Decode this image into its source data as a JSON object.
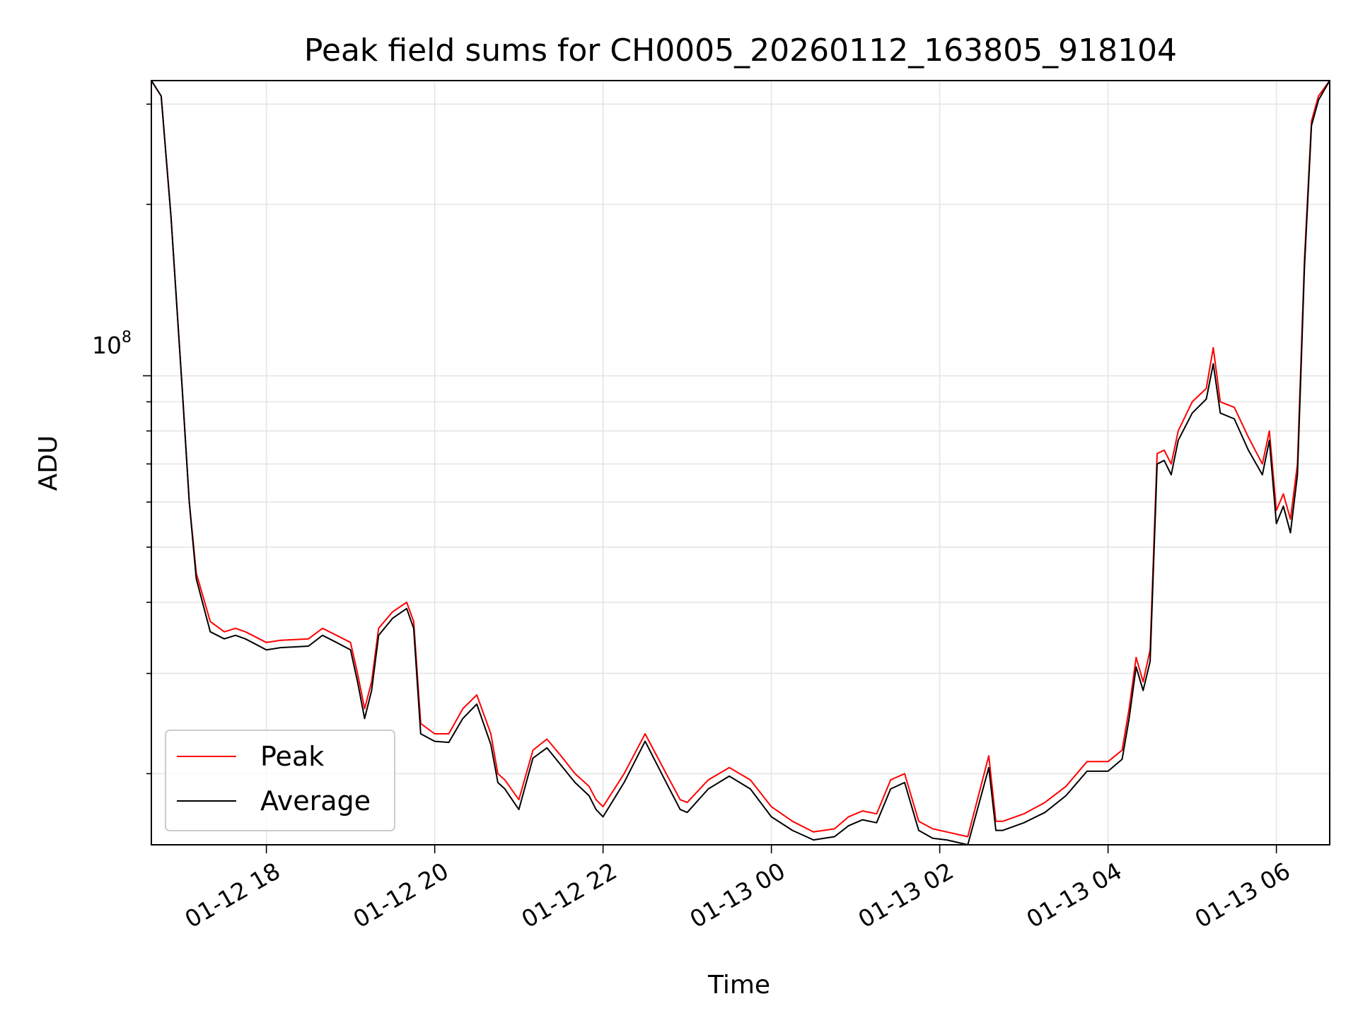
{
  "chart_data": {
    "type": "line",
    "title": "Peak field sums for CH0005_20260112_163805_918104",
    "xlabel": "Time",
    "ylabel": "ADU",
    "y_scale": "log",
    "grid": true,
    "legend_position": "lower-left",
    "xlim": [
      "2026-01-12 16:38",
      "2026-01-13 06:38"
    ],
    "ylim": [
      15000000,
      330000000
    ],
    "x_tick_labels": [
      "01-12 18",
      "01-12 20",
      "01-12 22",
      "01-13 00",
      "01-13 02",
      "01-13 04",
      "01-13 06"
    ],
    "x_ticks": [
      "2026-01-12 18:00",
      "2026-01-12 20:00",
      "2026-01-12 22:00",
      "2026-01-13 00:00",
      "2026-01-13 02:00",
      "2026-01-13 04:00",
      "2026-01-13 06:00"
    ],
    "y_tick_label": "10^8",
    "y_tick_label_base": "10",
    "y_tick_label_exp": "8",
    "y_major_ticks": [
      100000000
    ],
    "y_minor_ticks": [
      20000000,
      30000000,
      40000000,
      50000000,
      60000000,
      70000000,
      80000000,
      90000000,
      200000000,
      300000000
    ],
    "legend": [
      {
        "label": "Peak",
        "color": "#ff0000"
      },
      {
        "label": "Average",
        "color": "#000000"
      }
    ],
    "series": [
      {
        "name": "Peak",
        "color": "#ff0000",
        "x": [
          "2026-01-12 16:38",
          "2026-01-12 16:45",
          "2026-01-12 16:52",
          "2026-01-12 17:00",
          "2026-01-12 17:05",
          "2026-01-12 17:10",
          "2026-01-12 17:20",
          "2026-01-12 17:30",
          "2026-01-12 17:38",
          "2026-01-12 17:45",
          "2026-01-12 17:50",
          "2026-01-12 18:00",
          "2026-01-12 18:10",
          "2026-01-12 18:30",
          "2026-01-12 18:40",
          "2026-01-12 18:50",
          "2026-01-12 19:00",
          "2026-01-12 19:05",
          "2026-01-12 19:10",
          "2026-01-12 19:15",
          "2026-01-12 19:20",
          "2026-01-12 19:30",
          "2026-01-12 19:40",
          "2026-01-12 19:45",
          "2026-01-12 19:50",
          "2026-01-12 20:00",
          "2026-01-12 20:10",
          "2026-01-12 20:20",
          "2026-01-12 20:30",
          "2026-01-12 20:40",
          "2026-01-12 20:45",
          "2026-01-12 20:50",
          "2026-01-12 21:00",
          "2026-01-12 21:10",
          "2026-01-12 21:20",
          "2026-01-12 21:30",
          "2026-01-12 21:40",
          "2026-01-12 21:50",
          "2026-01-12 21:55",
          "2026-01-12 22:00",
          "2026-01-12 22:15",
          "2026-01-12 22:30",
          "2026-01-12 22:45",
          "2026-01-12 22:55",
          "2026-01-12 23:00",
          "2026-01-12 23:15",
          "2026-01-12 23:30",
          "2026-01-12 23:45",
          "2026-01-13 00:00",
          "2026-01-13 00:15",
          "2026-01-13 00:30",
          "2026-01-13 00:45",
          "2026-01-13 00:55",
          "2026-01-13 01:05",
          "2026-01-13 01:15",
          "2026-01-13 01:25",
          "2026-01-13 01:35",
          "2026-01-13 01:45",
          "2026-01-13 01:55",
          "2026-01-13 02:05",
          "2026-01-13 02:20",
          "2026-01-13 02:35",
          "2026-01-13 02:40",
          "2026-01-13 02:45",
          "2026-01-13 03:00",
          "2026-01-13 03:15",
          "2026-01-13 03:30",
          "2026-01-13 03:45",
          "2026-01-13 04:00",
          "2026-01-13 04:10",
          "2026-01-13 04:15",
          "2026-01-13 04:20",
          "2026-01-13 04:25",
          "2026-01-13 04:30",
          "2026-01-13 04:35",
          "2026-01-13 04:40",
          "2026-01-13 04:45",
          "2026-01-13 04:50",
          "2026-01-13 05:00",
          "2026-01-13 05:10",
          "2026-01-13 05:15",
          "2026-01-13 05:20",
          "2026-01-13 05:30",
          "2026-01-13 05:40",
          "2026-01-13 05:50",
          "2026-01-13 05:55",
          "2026-01-13 06:00",
          "2026-01-13 06:05",
          "2026-01-13 06:10",
          "2026-01-13 06:15",
          "2026-01-13 06:20",
          "2026-01-13 06:25",
          "2026-01-13 06:30",
          "2026-01-13 06:38"
        ],
        "values": [
          330000000,
          310000000,
          190000000,
          95000000,
          60000000,
          45000000,
          37000000,
          35500000,
          36000000,
          35500000,
          35000000,
          34000000,
          34300000,
          34500000,
          36000000,
          35000000,
          34000000,
          30000000,
          26000000,
          29000000,
          36000000,
          38500000,
          40000000,
          37000000,
          24500000,
          23500000,
          23500000,
          26000000,
          27500000,
          23500000,
          20000000,
          19500000,
          18000000,
          22000000,
          23000000,
          21500000,
          20000000,
          19000000,
          18000000,
          17500000,
          20000000,
          23500000,
          20000000,
          18000000,
          17800000,
          19500000,
          20500000,
          19500000,
          17500000,
          16500000,
          15800000,
          16000000,
          16800000,
          17200000,
          17000000,
          19500000,
          20000000,
          16500000,
          16000000,
          15800000,
          15500000,
          21500000,
          16500000,
          16500000,
          17000000,
          17800000,
          19000000,
          21000000,
          21000000,
          22000000,
          26000000,
          32000000,
          29000000,
          33000000,
          73000000,
          74000000,
          70000000,
          80000000,
          90000000,
          95000000,
          112000000,
          90000000,
          88000000,
          78000000,
          70000000,
          80000000,
          58000000,
          62000000,
          56000000,
          70000000,
          160000000,
          280000000,
          310000000,
          330000000
        ]
      },
      {
        "name": "Average",
        "color": "#000000",
        "x": [
          "2026-01-12 16:38",
          "2026-01-12 16:45",
          "2026-01-12 16:52",
          "2026-01-12 17:00",
          "2026-01-12 17:05",
          "2026-01-12 17:10",
          "2026-01-12 17:20",
          "2026-01-12 17:30",
          "2026-01-12 17:38",
          "2026-01-12 17:45",
          "2026-01-12 17:50",
          "2026-01-12 18:00",
          "2026-01-12 18:10",
          "2026-01-12 18:30",
          "2026-01-12 18:40",
          "2026-01-12 18:50",
          "2026-01-12 19:00",
          "2026-01-12 19:05",
          "2026-01-12 19:10",
          "2026-01-12 19:15",
          "2026-01-12 19:20",
          "2026-01-12 19:30",
          "2026-01-12 19:40",
          "2026-01-12 19:45",
          "2026-01-12 19:50",
          "2026-01-12 20:00",
          "2026-01-12 20:10",
          "2026-01-12 20:20",
          "2026-01-12 20:30",
          "2026-01-12 20:40",
          "2026-01-12 20:45",
          "2026-01-12 20:50",
          "2026-01-12 21:00",
          "2026-01-12 21:10",
          "2026-01-12 21:20",
          "2026-01-12 21:30",
          "2026-01-12 21:40",
          "2026-01-12 21:50",
          "2026-01-12 21:55",
          "2026-01-12 22:00",
          "2026-01-12 22:15",
          "2026-01-12 22:30",
          "2026-01-12 22:45",
          "2026-01-12 22:55",
          "2026-01-12 23:00",
          "2026-01-12 23:15",
          "2026-01-12 23:30",
          "2026-01-12 23:45",
          "2026-01-13 00:00",
          "2026-01-13 00:15",
          "2026-01-13 00:30",
          "2026-01-13 00:45",
          "2026-01-13 00:55",
          "2026-01-13 01:05",
          "2026-01-13 01:15",
          "2026-01-13 01:25",
          "2026-01-13 01:35",
          "2026-01-13 01:45",
          "2026-01-13 01:55",
          "2026-01-13 02:05",
          "2026-01-13 02:20",
          "2026-01-13 02:35",
          "2026-01-13 02:40",
          "2026-01-13 02:45",
          "2026-01-13 03:00",
          "2026-01-13 03:15",
          "2026-01-13 03:30",
          "2026-01-13 03:45",
          "2026-01-13 04:00",
          "2026-01-13 04:10",
          "2026-01-13 04:15",
          "2026-01-13 04:20",
          "2026-01-13 04:25",
          "2026-01-13 04:30",
          "2026-01-13 04:35",
          "2026-01-13 04:40",
          "2026-01-13 04:45",
          "2026-01-13 04:50",
          "2026-01-13 05:00",
          "2026-01-13 05:10",
          "2026-01-13 05:15",
          "2026-01-13 05:20",
          "2026-01-13 05:30",
          "2026-01-13 05:40",
          "2026-01-13 05:50",
          "2026-01-13 05:55",
          "2026-01-13 06:00",
          "2026-01-13 06:05",
          "2026-01-13 06:10",
          "2026-01-13 06:15",
          "2026-01-13 06:20",
          "2026-01-13 06:25",
          "2026-01-13 06:30",
          "2026-01-13 06:38"
        ],
        "values": [
          330000000,
          310000000,
          190000000,
          95000000,
          60000000,
          44000000,
          35500000,
          34500000,
          35000000,
          34500000,
          34000000,
          33000000,
          33300000,
          33500000,
          35000000,
          34000000,
          33000000,
          29000000,
          25000000,
          28000000,
          35000000,
          37500000,
          39000000,
          36000000,
          23500000,
          22800000,
          22700000,
          25000000,
          26500000,
          22500000,
          19300000,
          18800000,
          17300000,
          21300000,
          22200000,
          20700000,
          19300000,
          18300000,
          17300000,
          16800000,
          19300000,
          22800000,
          19300000,
          17300000,
          17100000,
          18800000,
          19800000,
          18800000,
          16800000,
          15900000,
          15300000,
          15500000,
          16200000,
          16600000,
          16400000,
          18800000,
          19300000,
          15900000,
          15400000,
          15300000,
          15000000,
          20500000,
          15900000,
          15900000,
          16400000,
          17100000,
          18300000,
          20200000,
          20200000,
          21200000,
          25000000,
          30800000,
          28000000,
          31500000,
          70000000,
          71000000,
          67000000,
          77000000,
          86000000,
          91000000,
          105000000,
          86000000,
          84000000,
          74000000,
          67000000,
          77000000,
          55000000,
          59000000,
          53000000,
          67000000,
          155000000,
          275000000,
          305000000,
          330000000
        ]
      }
    ]
  }
}
